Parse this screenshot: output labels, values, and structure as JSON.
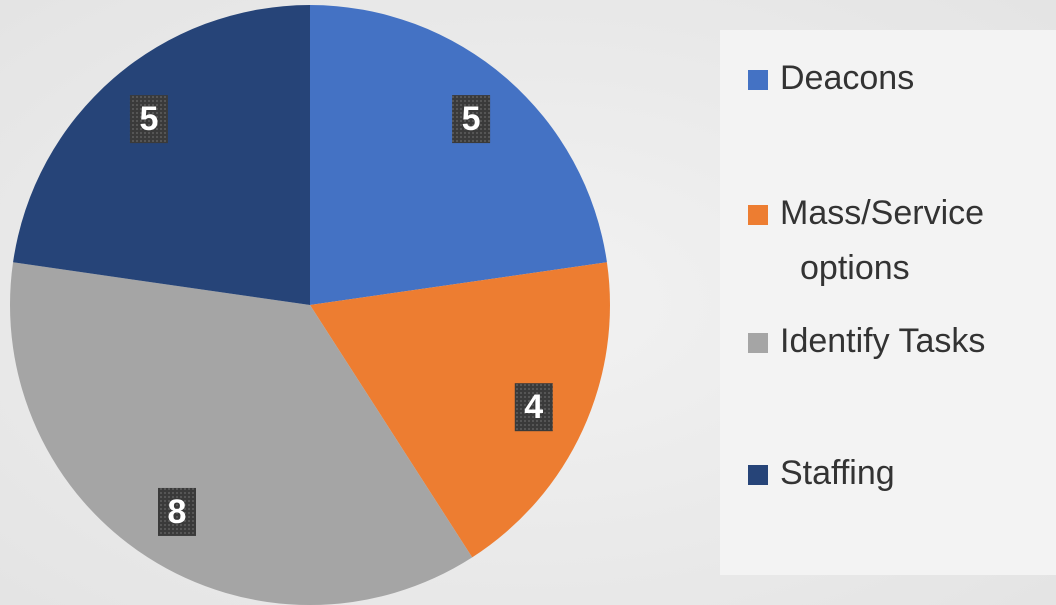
{
  "chart_data": {
    "type": "pie",
    "categories": [
      "Deacons",
      "Mass/Service options",
      "Identify Tasks",
      "Staffing"
    ],
    "values": [
      5,
      4,
      8,
      5
    ],
    "colors": [
      "#4472c4",
      "#ed7d31",
      "#a5a5a5",
      "#264478"
    ],
    "legend": "right"
  }
}
